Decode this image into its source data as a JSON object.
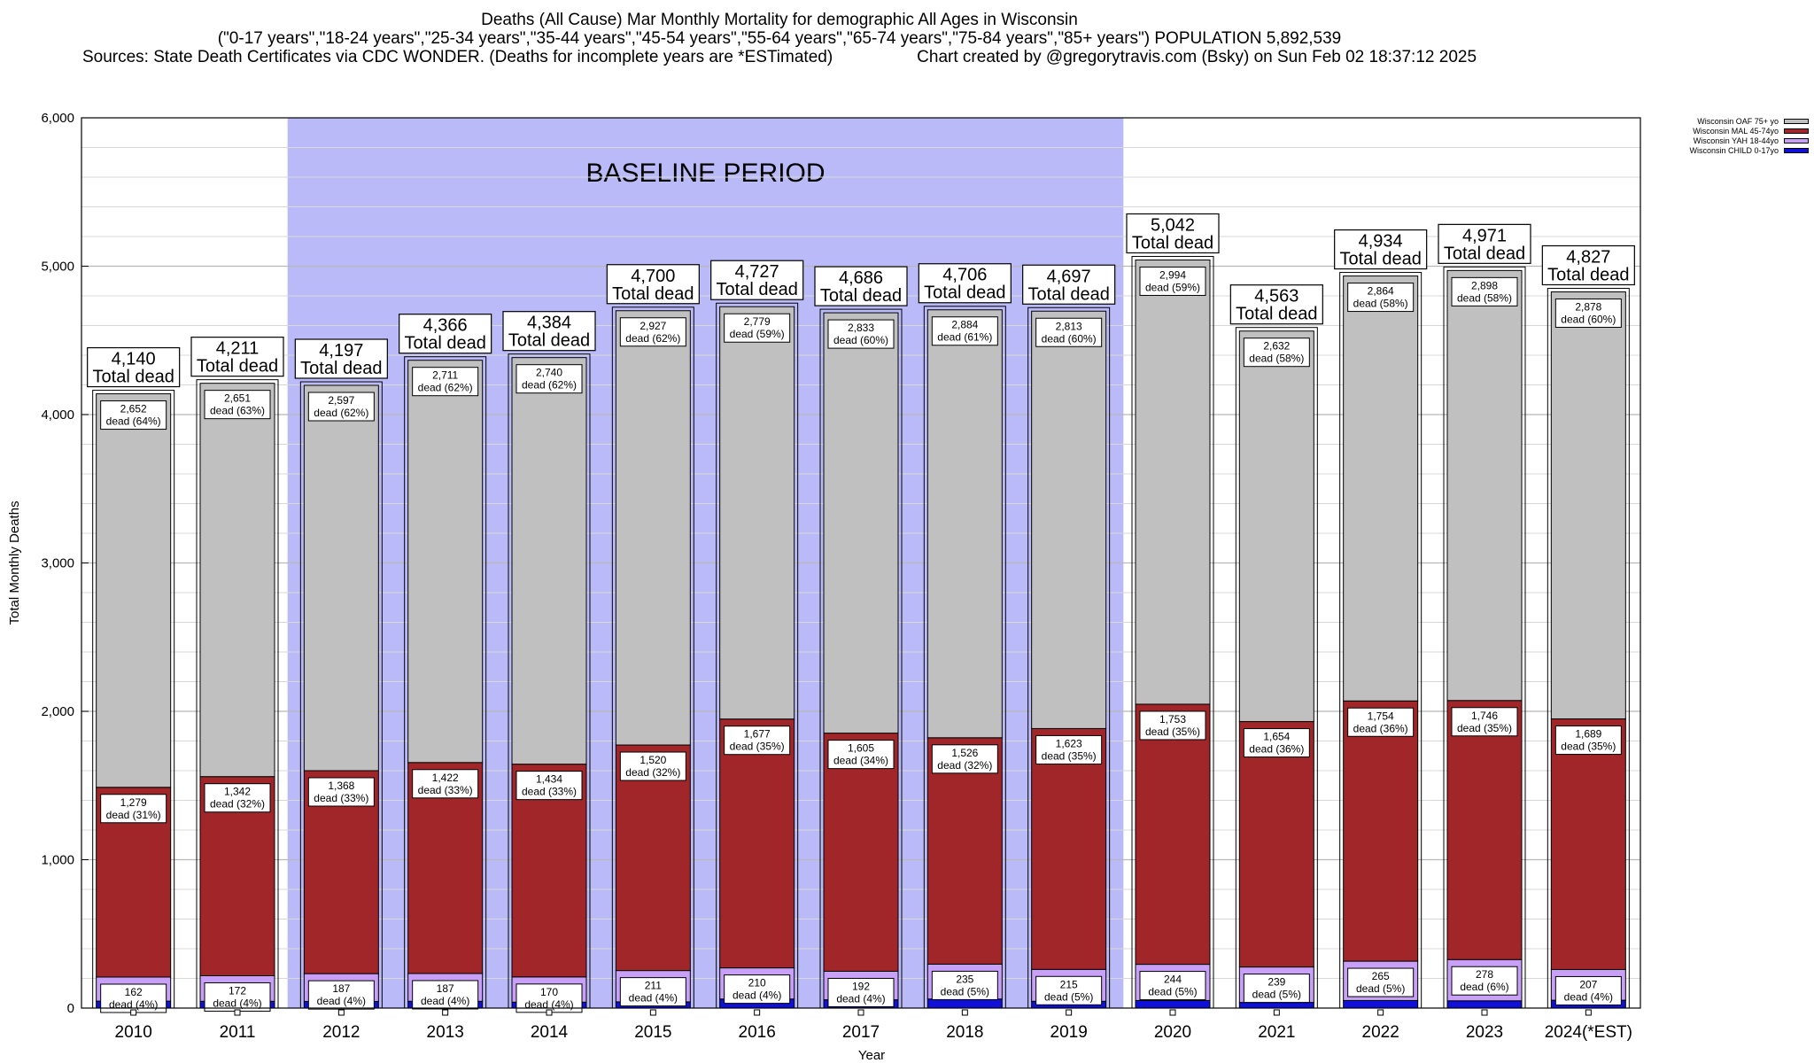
{
  "title": {
    "line1": "Deaths (All Cause) Mar Monthly Mortality for demographic All Ages in Wisconsin",
    "line2": "(\"0-17 years\",\"18-24 years\",\"25-34 years\",\"35-44 years\",\"45-54 years\",\"55-64 years\",\"65-74 years\",\"75-84 years\",\"85+ years\") POPULATION 5,892,539",
    "line3": "Sources: State Death Certificates via CDC WONDER. (Deaths for incomplete years are *ESTimated)                  Chart created by @gregorytravis.com (Bsky) on Sun Feb 02 18:37:12 2025"
  },
  "legend": [
    {
      "label": "Wisconsin OAF 75+ yo",
      "color": "#c0c0c0"
    },
    {
      "label": "Wisconsin MAL 45-74yo",
      "color": "#a0262a"
    },
    {
      "label": "Wisconsin YAH 18-44yo",
      "color": "#c8a0f8"
    },
    {
      "label": "Wisconsin CHILD 0-17yo",
      "color": "#1010d8"
    }
  ],
  "baseline_label": "BASELINE PERIOD",
  "total_suffix": "Total dead",
  "dead_prefix": "dead",
  "chart_data": {
    "type": "bar",
    "stacked": true,
    "title": "Deaths (All Cause) Mar Monthly Mortality for demographic All Ages in Wisconsin",
    "xlabel": "Year",
    "ylabel": "Total Monthly Deaths",
    "ylim": [
      0,
      6000
    ],
    "yticks": [
      0,
      1000,
      2000,
      3000,
      4000,
      5000,
      6000
    ],
    "ytick_labels": [
      "0",
      "1,000",
      "2,000",
      "3,000",
      "4,000",
      "5,000",
      "6,000"
    ],
    "grid": true,
    "baseline_period": [
      "2012",
      "2019"
    ],
    "categories": [
      "2010",
      "2011",
      "2012",
      "2013",
      "2014",
      "2015",
      "2016",
      "2017",
      "2018",
      "2019",
      "2020",
      "2021",
      "2022",
      "2023",
      "2024(*EST)"
    ],
    "totals": [
      4140,
      4211,
      4197,
      4366,
      4384,
      4700,
      4727,
      4686,
      4706,
      4697,
      5042,
      4563,
      4934,
      4971,
      4827
    ],
    "totals_labels": [
      "4,140",
      "4,211",
      "4,197",
      "4,366",
      "4,384",
      "4,700",
      "4,727",
      "4,686",
      "4,706",
      "4,697",
      "5,042",
      "4,563",
      "4,934",
      "4,971",
      "4,827"
    ],
    "series": [
      {
        "name": "Wisconsin CHILD 0-17yo",
        "color": "#1010d8",
        "values": [
          47,
          46,
          45,
          46,
          40,
          42,
          61,
          56,
          61,
          46,
          51,
          38,
          51,
          49,
          53
        ]
      },
      {
        "name": "Wisconsin YAH 18-44yo",
        "color": "#c8a0f8",
        "values": [
          162,
          172,
          187,
          187,
          170,
          211,
          210,
          192,
          235,
          215,
          244,
          239,
          265,
          278,
          207
        ],
        "labels": [
          "162",
          "172",
          "187",
          "187",
          "170",
          "211",
          "210",
          "192",
          "235",
          "215",
          "244",
          "239",
          "265",
          "278",
          "207"
        ],
        "percents": [
          "4%",
          "4%",
          "4%",
          "4%",
          "4%",
          "4%",
          "4%",
          "4%",
          "5%",
          "5%",
          "5%",
          "5%",
          "5%",
          "6%",
          "4%"
        ]
      },
      {
        "name": "Wisconsin MAL 45-74yo",
        "color": "#a0262a",
        "values": [
          1279,
          1342,
          1368,
          1422,
          1434,
          1520,
          1677,
          1605,
          1526,
          1623,
          1753,
          1654,
          1754,
          1746,
          1689
        ],
        "labels": [
          "1,279",
          "1,342",
          "1,368",
          "1,422",
          "1,434",
          "1,520",
          "1,677",
          "1,605",
          "1,526",
          "1,623",
          "1,753",
          "1,654",
          "1,754",
          "1,746",
          "1,689"
        ],
        "percents": [
          "31%",
          "32%",
          "33%",
          "33%",
          "33%",
          "32%",
          "35%",
          "34%",
          "32%",
          "35%",
          "35%",
          "36%",
          "36%",
          "35%",
          "35%"
        ]
      },
      {
        "name": "Wisconsin OAF 75+ yo",
        "color": "#c0c0c0",
        "values": [
          2652,
          2651,
          2597,
          2711,
          2740,
          2927,
          2779,
          2833,
          2884,
          2813,
          2994,
          2632,
          2864,
          2898,
          2878
        ],
        "labels": [
          "2,652",
          "2,651",
          "2,597",
          "2,711",
          "2,740",
          "2,927",
          "2,779",
          "2,833",
          "2,884",
          "2,813",
          "2,994",
          "2,632",
          "2,864",
          "2,898",
          "2,878"
        ],
        "percents": [
          "64%",
          "63%",
          "62%",
          "62%",
          "62%",
          "62%",
          "59%",
          "60%",
          "61%",
          "60%",
          "59%",
          "58%",
          "58%",
          "58%",
          "60%"
        ]
      }
    ]
  }
}
